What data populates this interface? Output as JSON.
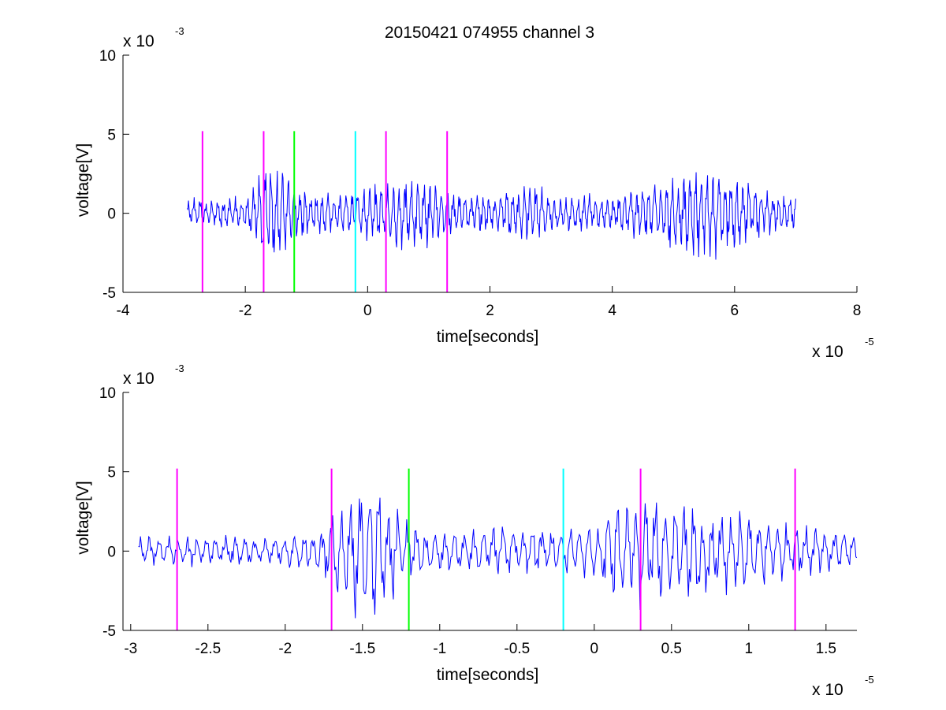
{
  "figure": {
    "title": "20150421 074955 channel 3"
  },
  "chart_data": [
    {
      "type": "line",
      "title": "20150421 074955 channel 3",
      "xlabel": "time[seconds]",
      "ylabel": "voltage[V]",
      "x_multiplier_label": {
        "base": "x 10",
        "exp": "-5"
      },
      "y_multiplier_label": {
        "base": "x 10",
        "exp": "-3"
      },
      "x_tick_values": [
        -4,
        -2,
        0,
        2,
        4,
        6,
        8
      ],
      "x_tick_labels": [
        "-4",
        "-2",
        "0",
        "2",
        "4",
        "6",
        "8"
      ],
      "y_tick_values": [
        -5,
        0,
        5,
        10
      ],
      "y_tick_labels": [
        "-5",
        "0",
        "5",
        "10"
      ],
      "xlim": [
        -4,
        8
      ],
      "ylim": [
        -5,
        10
      ],
      "x_units": "1e-5 seconds",
      "y_units": "1e-3 volts",
      "series": [
        {
          "color": "#0000ff",
          "x_range": [
            -2.95,
            7.0
          ],
          "samples": 960,
          "amplitude_envelope": [
            [
              -2.95,
              0.8
            ],
            [
              -2.0,
              0.9
            ],
            [
              -1.7,
              2.6
            ],
            [
              -1.4,
              3.0
            ],
            [
              -1.2,
              1.5
            ],
            [
              -0.5,
              1.1
            ],
            [
              0.0,
              1.5
            ],
            [
              0.5,
              2.0
            ],
            [
              1.0,
              1.9
            ],
            [
              1.3,
              1.3
            ],
            [
              2.0,
              1.0
            ],
            [
              2.8,
              1.8
            ],
            [
              3.0,
              1.1
            ],
            [
              4.0,
              1.0
            ],
            [
              4.8,
              1.8
            ],
            [
              5.4,
              2.6
            ],
            [
              6.0,
              2.2
            ],
            [
              6.5,
              1.2
            ],
            [
              7.0,
              1.0
            ]
          ]
        }
      ],
      "vertical_markers": [
        {
          "x": -2.7,
          "y_range": [
            -5,
            5.2
          ],
          "color": "#ff00ff"
        },
        {
          "x": -1.7,
          "y_range": [
            -5,
            5.2
          ],
          "color": "#ff00ff"
        },
        {
          "x": -1.2,
          "y_range": [
            -5,
            5.2
          ],
          "color": "#00ff00"
        },
        {
          "x": -0.2,
          "y_range": [
            -5,
            5.2
          ],
          "color": "#00ffff"
        },
        {
          "x": 0.3,
          "y_range": [
            -5,
            5.2
          ],
          "color": "#ff00ff"
        },
        {
          "x": 1.3,
          "y_range": [
            -5,
            5.2
          ],
          "color": "#ff00ff"
        }
      ]
    },
    {
      "type": "line",
      "title": "",
      "xlabel": "time[seconds]",
      "ylabel": "voltage[V]",
      "x_multiplier_label": {
        "base": "x 10",
        "exp": "-5"
      },
      "y_multiplier_label": {
        "base": "x 10",
        "exp": "-3"
      },
      "x_tick_values": [
        -3,
        -2.5,
        -2,
        -1.5,
        -1,
        -0.5,
        0,
        0.5,
        1,
        1.5
      ],
      "x_tick_labels": [
        "-3",
        "-2.5",
        "-2",
        "-1.5",
        "-1",
        "-0.5",
        "0",
        "0.5",
        "1",
        "1.5"
      ],
      "y_tick_values": [
        -5,
        0,
        5,
        10
      ],
      "y_tick_labels": [
        "-5",
        "0",
        "5",
        "10"
      ],
      "xlim": [
        -3.05,
        1.7
      ],
      "ylim": [
        -5,
        10
      ],
      "x_units": "1e-5 seconds",
      "y_units": "1e-3 volts",
      "series": [
        {
          "color": "#0000ff",
          "x_range": [
            -2.95,
            1.7
          ],
          "samples": 700,
          "amplitude_envelope": [
            [
              -2.95,
              0.8
            ],
            [
              -2.0,
              0.9
            ],
            [
              -1.75,
              1.6
            ],
            [
              -1.55,
              3.6
            ],
            [
              -1.4,
              4.0
            ],
            [
              -1.25,
              2.0
            ],
            [
              -1.0,
              1.2
            ],
            [
              -0.5,
              1.4
            ],
            [
              -0.2,
              1.2
            ],
            [
              0.0,
              1.6
            ],
            [
              0.15,
              3.2
            ],
            [
              0.45,
              3.0
            ],
            [
              0.8,
              2.3
            ],
            [
              1.3,
              1.6
            ],
            [
              1.7,
              1.0
            ]
          ]
        }
      ],
      "vertical_markers": [
        {
          "x": -2.7,
          "y_range": [
            -5,
            5.2
          ],
          "color": "#ff00ff"
        },
        {
          "x": -1.7,
          "y_range": [
            -5,
            5.2
          ],
          "color": "#ff00ff"
        },
        {
          "x": -1.2,
          "y_range": [
            -5,
            5.2
          ],
          "color": "#00ff00"
        },
        {
          "x": -0.2,
          "y_range": [
            -5,
            5.2
          ],
          "color": "#00ffff"
        },
        {
          "x": 0.3,
          "y_range": [
            -5,
            5.2
          ],
          "color": "#ff00ff"
        },
        {
          "x": 1.3,
          "y_range": [
            -5,
            5.2
          ],
          "color": "#ff00ff"
        }
      ]
    }
  ]
}
